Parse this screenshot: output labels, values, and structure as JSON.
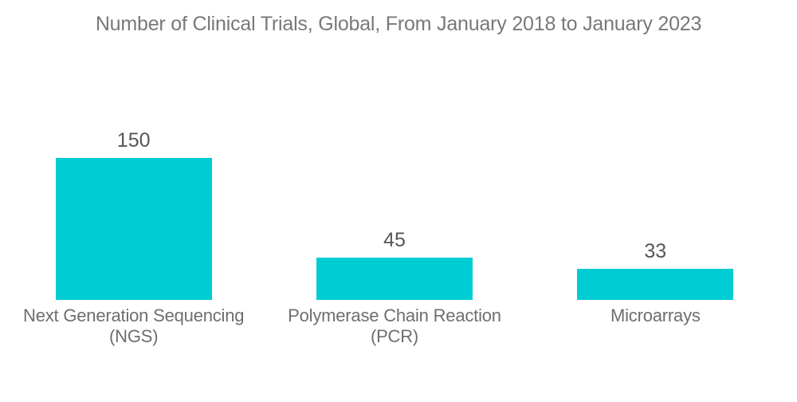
{
  "title": "Number of Clinical Trials, Global, From January 2018 to January 2023",
  "chart_data": {
    "type": "bar",
    "title": "Number of Clinical Trials, Global, From January 2018 to January 2023",
    "categories": [
      "Next Generation Sequencing (NGS)",
      "Polymerase Chain Reaction (PCR)",
      "Microarrays"
    ],
    "values": [
      150,
      45,
      33
    ],
    "value_labels": [
      "150",
      "45",
      "33"
    ],
    "xlabel": "",
    "ylabel": "",
    "ylim": [
      0,
      150
    ],
    "grid": false,
    "legend": "none",
    "axes_visible": false,
    "orientation": "vertical",
    "colors": {
      "bar_fill": "#00CDD3",
      "title_text": "#787878",
      "value_text": "#54575A",
      "category_text": "#6E6E6E",
      "background": "#FFFFFF"
    }
  }
}
